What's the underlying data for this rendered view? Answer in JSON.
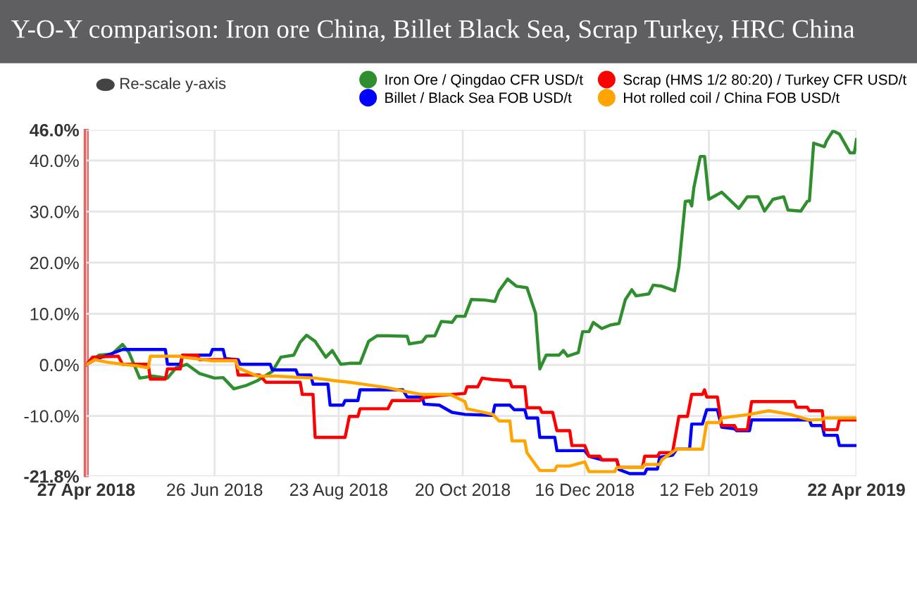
{
  "chart_data": {
    "type": "line",
    "title": "Y-O-Y comparison: Iron ore China, Billet Black Sea, Scrap Turkey, HRC China",
    "annotations": [
      "Re-scale y-axis"
    ],
    "legend": "top",
    "grid": true,
    "marker": "none",
    "line_style": "solid",
    "xlim": [
      "2018-04-27",
      "2019-04-22"
    ],
    "xticks": [
      {
        "value": "2018-04-27",
        "label": "27 Apr 2018"
      },
      {
        "value": "2018-06-26",
        "label": "26 Jun 2018"
      },
      {
        "value": "2018-08-23",
        "label": "23 Aug 2018"
      },
      {
        "value": "2018-10-20",
        "label": "20 Oct 2018"
      },
      {
        "value": "2018-12-16",
        "label": "16 Dec 2018"
      },
      {
        "value": "2019-02-12",
        "label": "12 Feb 2019"
      },
      {
        "value": "2019-04-22",
        "label": "22 Apr 2019"
      }
    ],
    "ylim": [
      -21.8,
      46.0
    ],
    "yticks": [
      {
        "value": -21.8,
        "label": "-21.8%"
      },
      {
        "value": -10,
        "label": "-10.0%"
      },
      {
        "value": 0,
        "label": "0.0%"
      },
      {
        "value": 10,
        "label": "10.0%"
      },
      {
        "value": 20,
        "label": "20.0%"
      },
      {
        "value": 30,
        "label": "30.0%"
      },
      {
        "value": 40,
        "label": "40.0%"
      },
      {
        "value": 46.0,
        "label": "46.0%"
      }
    ],
    "series": [
      {
        "name": "Iron Ore / Qingdao CFR USD/t",
        "color": "#2f8f2f",
        "x": [
          "2018-04-27",
          "2018-05-03",
          "2018-05-09",
          "2018-05-14",
          "2018-05-17",
          "2018-05-22",
          "2018-05-28",
          "2018-06-04",
          "2018-06-08",
          "2018-06-13",
          "2018-06-19",
          "2018-06-26",
          "2018-06-30",
          "2018-07-05",
          "2018-07-11",
          "2018-07-16",
          "2018-07-23",
          "2018-07-27",
          "2018-08-02",
          "2018-08-05",
          "2018-08-08",
          "2018-08-12",
          "2018-08-17",
          "2018-08-20",
          "2018-08-24",
          "2018-08-28",
          "2018-09-02",
          "2018-09-06",
          "2018-09-10",
          "2018-09-15",
          "2018-09-24",
          "2018-09-25",
          "2018-10-01",
          "2018-10-03",
          "2018-10-07",
          "2018-10-10",
          "2018-10-15",
          "2018-10-17",
          "2018-10-21",
          "2018-10-24",
          "2018-10-30",
          "2018-11-04",
          "2018-11-06",
          "2018-11-10",
          "2018-11-14",
          "2018-11-19",
          "2018-11-23",
          "2018-11-25",
          "2018-11-28",
          "2018-12-04",
          "2018-12-06",
          "2018-12-08",
          "2018-12-13",
          "2018-12-15",
          "2018-12-18",
          "2018-12-20",
          "2018-12-24",
          "2018-12-28",
          "2019-01-01",
          "2019-01-04",
          "2019-01-07",
          "2019-01-09",
          "2019-01-15",
          "2019-01-17",
          "2019-01-21",
          "2019-01-27",
          "2019-01-29",
          "2019-02-01",
          "2019-02-03",
          "2019-02-04",
          "2019-02-05",
          "2019-02-08",
          "2019-02-10",
          "2019-02-12",
          "2019-02-18",
          "2019-02-26",
          "2019-03-02",
          "2019-03-07",
          "2019-03-10",
          "2019-03-14",
          "2019-03-19",
          "2019-03-21",
          "2019-03-27",
          "2019-03-30",
          "2019-03-31",
          "2019-04-02",
          "2019-04-07",
          "2019-04-08",
          "2019-04-11",
          "2019-04-14",
          "2019-04-19",
          "2019-04-21",
          "2019-04-22"
        ],
        "values": [
          0,
          1.9,
          2.1,
          4.0,
          2.4,
          -2.6,
          -2.2,
          -2.6,
          -0.6,
          0.1,
          -1.7,
          -2.6,
          -2.5,
          -4.7,
          -4.0,
          -3.1,
          -1.3,
          1.5,
          1.9,
          4.4,
          5.8,
          4.6,
          1.5,
          2.8,
          0.1,
          0.3,
          0.3,
          4.6,
          5.7,
          5.7,
          5.6,
          4.1,
          4.5,
          5.6,
          5.7,
          8.5,
          8.3,
          9.5,
          9.5,
          12.8,
          12.7,
          12.4,
          14.5,
          16.8,
          15.4,
          15.1,
          10.1,
          -0.8,
          1.9,
          1.9,
          2.8,
          1.7,
          2.4,
          6.5,
          6.5,
          8.3,
          7.1,
          7.8,
          8.1,
          12.8,
          14.7,
          13.5,
          13.9,
          15.6,
          15.4,
          14.5,
          19.2,
          32.0,
          32.1,
          31.1,
          34.7,
          40.8,
          40.8,
          32.4,
          33.8,
          30.6,
          32.9,
          32.9,
          30.1,
          32.4,
          32.9,
          30.3,
          30.1,
          32.0,
          32.1,
          43.4,
          42.7,
          43.8,
          45.8,
          45.2,
          41.5,
          41.5,
          44.1
        ]
      },
      {
        "name": "Billet / Black Sea FOB USD/t",
        "color": "#0000ff",
        "x": [
          "2018-04-27",
          "2018-05-01",
          "2018-05-07",
          "2018-05-14",
          "2018-06-03",
          "2018-06-04",
          "2018-06-10",
          "2018-06-11",
          "2018-06-24",
          "2018-06-25",
          "2018-06-30",
          "2018-07-01",
          "2018-07-07",
          "2018-07-08",
          "2018-07-22",
          "2018-07-23",
          "2018-08-03",
          "2018-08-04",
          "2018-08-10",
          "2018-08-11",
          "2018-08-18",
          "2018-08-19",
          "2018-08-25",
          "2018-08-26",
          "2018-09-01",
          "2018-09-02",
          "2018-09-22",
          "2018-09-24",
          "2018-10-01",
          "2018-10-02",
          "2018-10-09",
          "2018-10-15",
          "2018-10-21",
          "2018-11-03",
          "2018-11-04",
          "2018-11-11",
          "2018-11-13",
          "2018-11-18",
          "2018-11-19",
          "2018-11-24",
          "2018-11-25",
          "2018-12-02",
          "2018-12-03",
          "2018-12-16",
          "2018-12-18",
          "2018-12-24",
          "2018-12-31",
          "2019-01-01",
          "2019-01-06",
          "2019-01-13",
          "2019-01-14",
          "2019-01-19",
          "2019-01-20",
          "2019-01-26",
          "2019-01-28",
          "2019-02-03",
          "2019-02-04",
          "2019-02-09",
          "2019-02-11",
          "2019-02-16",
          "2019-02-18",
          "2019-02-24",
          "2019-02-25",
          "2019-03-03",
          "2019-03-04",
          "2019-03-31",
          "2019-04-01",
          "2019-04-06",
          "2019-04-07",
          "2019-04-13",
          "2019-04-14",
          "2019-04-22"
        ],
        "values": [
          0,
          1.0,
          1.9,
          3.0,
          3.0,
          0.1,
          0.1,
          1.9,
          1.9,
          3.0,
          3.0,
          1.2,
          1.0,
          0.1,
          0.1,
          -1.0,
          -1.0,
          -2.0,
          -2.0,
          -3.8,
          -3.8,
          -7.9,
          -7.9,
          -7.0,
          -7.0,
          -4.9,
          -4.9,
          -6.3,
          -6.3,
          -7.7,
          -7.9,
          -9.3,
          -9.7,
          -9.9,
          -7.9,
          -7.9,
          -8.8,
          -8.8,
          -10.4,
          -10.4,
          -14.2,
          -14.2,
          -16.8,
          -16.8,
          -17.9,
          -18.6,
          -18.6,
          -20.5,
          -21.3,
          -21.3,
          -20.4,
          -20.4,
          -18.1,
          -17.7,
          -16.5,
          -16.5,
          -11.6,
          -11.6,
          -8.8,
          -8.8,
          -12.2,
          -12.5,
          -12.9,
          -12.9,
          -10.8,
          -10.8,
          -11.9,
          -11.9,
          -13.8,
          -13.8,
          -15.8,
          -15.8
        ]
      },
      {
        "name": "Scrap (HMS 1/2 80:20) / Turkey CFR USD/t",
        "color": "#ff0000",
        "x": [
          "2018-04-27",
          "2018-04-30",
          "2018-05-12",
          "2018-05-14",
          "2018-05-26",
          "2018-05-27",
          "2018-06-03",
          "2018-06-04",
          "2018-06-10",
          "2018-06-11",
          "2018-06-18",
          "2018-06-19",
          "2018-07-06",
          "2018-07-07",
          "2018-07-17",
          "2018-07-20",
          "2018-08-05",
          "2018-08-06",
          "2018-08-11",
          "2018-08-12",
          "2018-08-26",
          "2018-08-28",
          "2018-09-01",
          "2018-09-02",
          "2018-09-15",
          "2018-09-17",
          "2018-09-30",
          "2018-10-01",
          "2018-10-09",
          "2018-10-21",
          "2018-10-22",
          "2018-10-27",
          "2018-10-29",
          "2018-11-03",
          "2018-11-11",
          "2018-11-12",
          "2018-11-18",
          "2018-11-19",
          "2018-11-25",
          "2018-11-26",
          "2018-12-01",
          "2018-12-03",
          "2018-12-09",
          "2018-12-10",
          "2018-12-16",
          "2018-12-18",
          "2018-12-23",
          "2018-12-24",
          "2018-12-31",
          "2019-01-01",
          "2019-01-12",
          "2019-01-13",
          "2019-01-19",
          "2019-01-20",
          "2019-01-26",
          "2019-01-29",
          "2019-02-02",
          "2019-02-04",
          "2019-02-09",
          "2019-02-10",
          "2019-02-11",
          "2019-02-16",
          "2019-02-18",
          "2019-02-24",
          "2019-02-25",
          "2019-03-02",
          "2019-03-04",
          "2019-03-24",
          "2019-03-25",
          "2019-03-30",
          "2019-03-31",
          "2019-04-06",
          "2019-04-07",
          "2019-04-13",
          "2019-04-14",
          "2019-04-22"
        ],
        "values": [
          0,
          1.5,
          1.7,
          0.1,
          0.1,
          -2.8,
          -2.8,
          -0.8,
          -0.8,
          1.9,
          1.9,
          1.0,
          1.0,
          -2.0,
          -2.0,
          -3.4,
          -3.4,
          -5.8,
          -5.8,
          -14.2,
          -14.2,
          -10.1,
          -10.1,
          -8.6,
          -8.6,
          -7.0,
          -7.0,
          -6.5,
          -6.0,
          -5.6,
          -4.3,
          -4.3,
          -2.6,
          -2.9,
          -3.1,
          -4.3,
          -4.3,
          -8.4,
          -8.4,
          -9.3,
          -9.3,
          -12.9,
          -12.9,
          -15.8,
          -15.8,
          -17.9,
          -17.9,
          -18.6,
          -18.6,
          -20.1,
          -20.1,
          -17.9,
          -17.9,
          -17.2,
          -17.2,
          -10.1,
          -10.1,
          -5.8,
          -5.8,
          -4.9,
          -6.3,
          -6.3,
          -11.9,
          -11.9,
          -12.7,
          -12.7,
          -7.2,
          -7.2,
          -8.3,
          -8.3,
          -9.0,
          -9.0,
          -12.7,
          -12.7,
          -10.8,
          -10.8
        ]
      },
      {
        "name": "Hot rolled coil / China FOB USD/t",
        "color": "#ffa500",
        "x": [
          "2018-04-27",
          "2018-05-01",
          "2018-05-07",
          "2018-05-14",
          "2018-05-21",
          "2018-05-26",
          "2018-05-27",
          "2018-06-10",
          "2018-06-11",
          "2018-06-25",
          "2018-07-06",
          "2018-07-07",
          "2018-07-16",
          "2018-07-25",
          "2018-08-02",
          "2018-08-12",
          "2018-08-21",
          "2018-08-28",
          "2018-09-02",
          "2018-09-15",
          "2018-09-23",
          "2018-10-01",
          "2018-10-14",
          "2018-10-21",
          "2018-10-22",
          "2018-11-03",
          "2018-11-06",
          "2018-11-11",
          "2018-11-12",
          "2018-11-18",
          "2018-11-19",
          "2018-11-25",
          "2018-12-02",
          "2018-12-03",
          "2018-12-09",
          "2018-12-16",
          "2018-12-18",
          "2018-12-30",
          "2018-12-31",
          "2019-01-12",
          "2019-01-13",
          "2019-01-20",
          "2019-01-21",
          "2019-01-28",
          "2019-02-09",
          "2019-02-11",
          "2019-02-17",
          "2019-02-18",
          "2019-03-03",
          "2019-03-12",
          "2019-03-22",
          "2019-03-31",
          "2019-04-06",
          "2019-04-07",
          "2019-04-22"
        ],
        "values": [
          0,
          1.0,
          0.5,
          0.1,
          -0.2,
          -0.6,
          1.7,
          1.7,
          1.5,
          0.8,
          0.8,
          -0.6,
          -2.2,
          -2.2,
          -2.4,
          -2.6,
          -3.1,
          -3.4,
          -3.7,
          -4.5,
          -5.2,
          -5.8,
          -5.8,
          -7.2,
          -8.6,
          -9.7,
          -11.0,
          -11.0,
          -14.9,
          -14.9,
          -17.2,
          -20.7,
          -20.7,
          -19.8,
          -19.8,
          -19.0,
          -20.9,
          -20.9,
          -20.1,
          -20.1,
          -19.5,
          -19.5,
          -18.6,
          -16.5,
          -16.5,
          -11.3,
          -11.3,
          -10.4,
          -9.7,
          -9.0,
          -9.7,
          -10.8,
          -10.7,
          -10.4,
          -10.4
        ]
      }
    ]
  }
}
